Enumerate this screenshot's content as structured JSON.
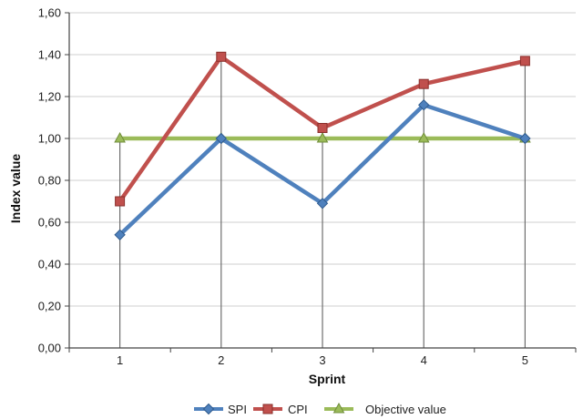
{
  "chart_data": {
    "type": "line",
    "xlabel": "Sprint",
    "ylabel": "Index value",
    "categories": [
      "1",
      "2",
      "3",
      "4",
      "5"
    ],
    "ylim": [
      0,
      1.6
    ],
    "y_ticks": [
      "0,00",
      "0,20",
      "0,40",
      "0,60",
      "0,80",
      "1,00",
      "1,20",
      "1,40",
      "1,60"
    ],
    "grid": "horizontal",
    "drop_lines": true,
    "legend_position": "bottom",
    "series": [
      {
        "name": "SPI",
        "values": [
          0.54,
          1.0,
          0.69,
          1.16,
          1.0
        ],
        "color": "#4f81bd",
        "marker": "diamond"
      },
      {
        "name": "CPI",
        "values": [
          0.7,
          1.39,
          1.05,
          1.26,
          1.37
        ],
        "color": "#c0504d",
        "marker": "square"
      },
      {
        "name": "Objective value",
        "values": [
          1.0,
          1.0,
          1.0,
          1.0,
          1.0
        ],
        "color": "#9bbb59",
        "marker": "triangle"
      }
    ]
  }
}
